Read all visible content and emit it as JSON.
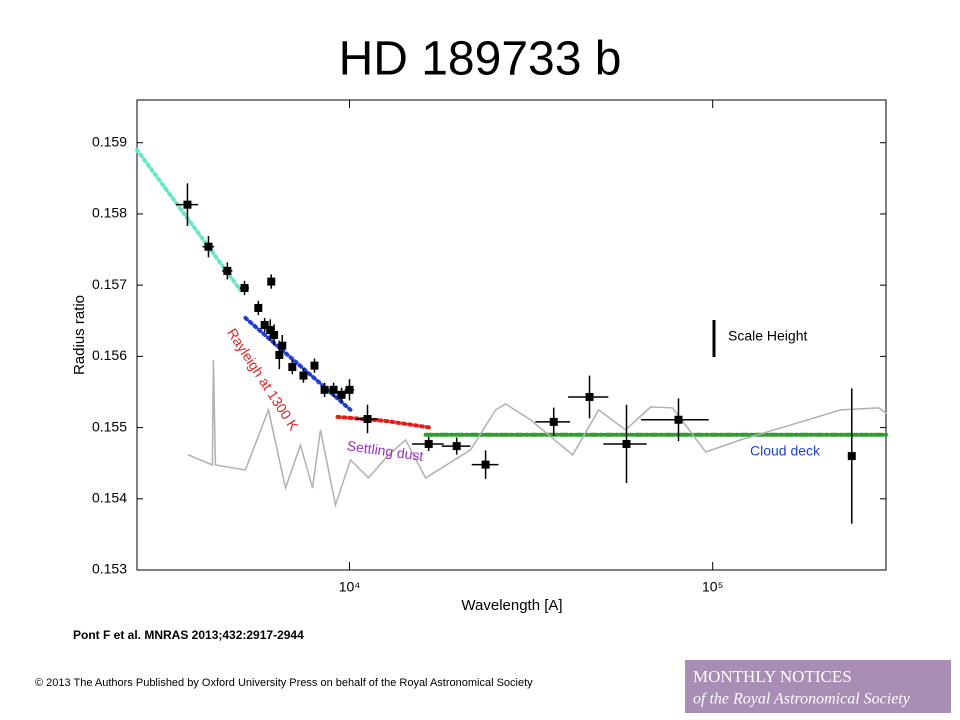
{
  "chart_data": {
    "type": "scatter",
    "title": "HD 189733 b",
    "x_label": "Wavelength [A]",
    "y_label": "Radius ratio",
    "xscale": "log",
    "xlim": [
      2600,
      300000
    ],
    "ylim": [
      0.153,
      0.1596
    ],
    "xticks": [
      {
        "value": 10000,
        "label": "10⁴"
      },
      {
        "value": 100000,
        "label": "10⁵"
      }
    ],
    "yticks": [
      0.153,
      0.154,
      0.155,
      0.156,
      0.157,
      0.158,
      0.159
    ],
    "color": "#000000",
    "x": [
      3580,
      4090,
      4610,
      5140,
      5610,
      6090,
      5840,
      6050,
      6200,
      6410,
      6530,
      6960,
      7470,
      8010,
      8540,
      9040,
      9510,
      10000,
      11210,
      16520,
      19730,
      23700,
      36500,
      45800,
      57900,
      80500,
      241500
    ],
    "values": [
      0.15813,
      0.15754,
      0.1572,
      0.15696,
      0.15668,
      0.15705,
      0.15644,
      0.15637,
      0.1563,
      0.15602,
      0.15615,
      0.15585,
      0.15573,
      0.15587,
      0.15553,
      0.15553,
      0.15546,
      0.15553,
      0.15512,
      0.15477,
      0.15474,
      0.15448,
      0.15508,
      0.15543,
      0.15477,
      0.15511,
      0.1546
    ],
    "xerr": [
      250,
      150,
      150,
      150,
      120,
      100,
      100,
      100,
      100,
      100,
      100,
      150,
      150,
      200,
      200,
      200,
      250,
      300,
      780,
      1650,
      1800,
      2000,
      4000,
      5800,
      7900,
      17000,
      0
    ],
    "yerr": [
      0.0003,
      0.00015,
      0.00012,
      0.0001,
      0.0001,
      0.0001,
      0.0001,
      0.00015,
      0.00015,
      0.0002,
      0.00015,
      0.0001,
      0.0001,
      0.0001,
      0.0001,
      0.0001,
      0.0001,
      0.00015,
      0.0002,
      0.0001,
      0.00012,
      0.0002,
      0.0002,
      0.0003,
      0.00055,
      0.0003,
      0.00095
    ],
    "lines": [
      {
        "color": "#66e8c8",
        "style": "dotted",
        "x": [
          2600,
          5010
        ],
        "values": [
          0.1589,
          0.15693
        ]
      },
      {
        "color": "#1f3fd0",
        "style": "dotted",
        "x": [
          5170,
          10060
        ],
        "values": [
          0.15654,
          0.15525
        ]
      },
      {
        "color": "#e0201a",
        "style": "dotted",
        "x": [
          9270,
          12566,
          16700
        ],
        "values": [
          0.15515,
          0.155094,
          0.155
        ]
      },
      {
        "color": "#2ca02c",
        "style": "dashdot",
        "x": [
          16200,
          300000
        ],
        "values": [
          0.1549,
          0.1549
        ]
      },
      {
        "color": "#b0b0b0",
        "style": "solid",
        "x": [
          3601,
          4194,
          4220,
          4275,
          5170,
          5982,
          6665,
          7328,
          7910,
          8320,
          9150,
          10065,
          11280,
          12806,
          14270,
          16200,
          21550,
          25250,
          26900,
          31520,
          38130,
          41160,
          48530,
          57580,
          67480,
          77600,
          95650,
          119400,
          164000,
          225200,
          286600,
          300000
        ],
        "values": [
          0.154616,
          0.154475,
          0.155951,
          0.154475,
          0.154405,
          0.155248,
          0.154152,
          0.154756,
          0.154152,
          0.154967,
          0.153913,
          0.154546,
          0.154293,
          0.154616,
          0.154827,
          0.154293,
          0.154686,
          0.155248,
          0.155332,
          0.155108,
          0.154756,
          0.154616,
          0.155248,
          0.154967,
          0.15529,
          0.155276,
          0.154658,
          0.154827,
          0.155037,
          0.155248,
          0.155276,
          0.155206
        ]
      }
    ],
    "annotations": [
      {
        "text": "Rayleigh at 1300 K",
        "color": "#d62728"
      },
      {
        "text": "Settling dust",
        "color": "#9b30c8"
      },
      {
        "text": "Cloud deck",
        "color": "#1f3fd0"
      },
      {
        "text": "Scale Height",
        "color": "#000000"
      }
    ]
  },
  "citation": "Pont F et al. MNRAS 2013;432:2917-2944",
  "copyright": "© 2013 The Authors Published by Oxford University Press on behalf of the Royal Astronomical Society",
  "logo": {
    "line1": "MONTHLY NOTICES",
    "line2": "of the Royal Astronomical Society"
  }
}
